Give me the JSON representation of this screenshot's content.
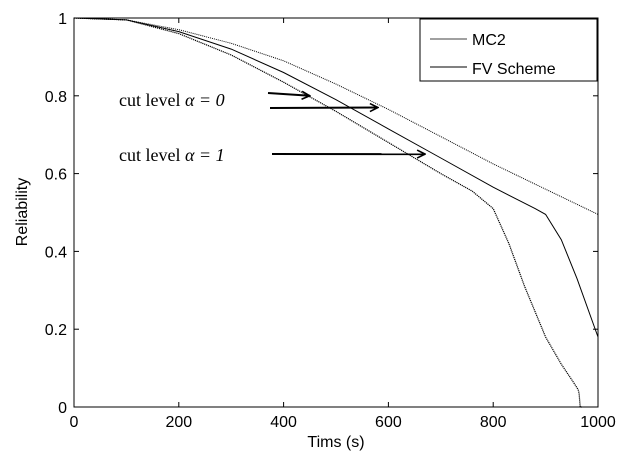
{
  "chart_data": {
    "type": "line",
    "title": "",
    "xlabel": "Tims (s)",
    "ylabel": "Reliability",
    "xlim": [
      0,
      1000
    ],
    "ylim": [
      0,
      1
    ],
    "xticks": [
      0,
      200,
      400,
      600,
      800,
      1000
    ],
    "yticks": [
      0,
      0.2,
      0.4,
      0.6,
      0.8,
      1
    ],
    "xtick_labels": [
      "0",
      "200",
      "400",
      "600",
      "800",
      "1000"
    ],
    "ytick_labels": [
      "0",
      "0.2",
      "0.4",
      "0.6",
      "0.8",
      "1"
    ],
    "grid": false,
    "legend": {
      "position": "top-right",
      "entries": [
        "MC2",
        "FV Scheme"
      ]
    },
    "series": [
      {
        "name": "MC2",
        "color": "#000000",
        "style": "dotted-thin",
        "x": [
          0,
          100,
          200,
          300,
          400,
          500,
          600,
          700,
          800,
          900,
          1000
        ],
        "y": [
          1.0,
          0.995,
          0.97,
          0.935,
          0.89,
          0.83,
          0.765,
          0.695,
          0.625,
          0.56,
          0.495
        ]
      },
      {
        "name": "FV Scheme",
        "color": "#000000",
        "style": "solid",
        "x": [
          0,
          100,
          200,
          300,
          400,
          500,
          600,
          700,
          800,
          880,
          900,
          930,
          960,
          1000
        ],
        "y": [
          1.0,
          0.995,
          0.965,
          0.92,
          0.86,
          0.79,
          0.715,
          0.64,
          0.565,
          0.51,
          0.495,
          0.43,
          0.33,
          0.18
        ]
      },
      {
        "name": "",
        "color": "#000000",
        "style": "dotted",
        "x": [
          0,
          100,
          200,
          300,
          400,
          500,
          600,
          700,
          760,
          800,
          830,
          860,
          900,
          930,
          950,
          962,
          964,
          966,
          970
        ],
        "y": [
          1.0,
          0.995,
          0.96,
          0.905,
          0.835,
          0.76,
          0.68,
          0.6,
          0.555,
          0.51,
          0.42,
          0.31,
          0.18,
          0.11,
          0.07,
          0.045,
          0.035,
          0.0,
          0.0
        ]
      }
    ],
    "annotations": [
      {
        "text": "cut level ",
        "math": "α = 0",
        "arrows": [
          {
            "to_x": 450,
            "to_y": 0.8
          },
          {
            "to_x": 580,
            "to_y": 0.77
          }
        ]
      },
      {
        "text": "cut level ",
        "math": "α = 1",
        "arrows": [
          {
            "to_x": 670,
            "to_y": 0.65
          }
        ]
      }
    ]
  }
}
